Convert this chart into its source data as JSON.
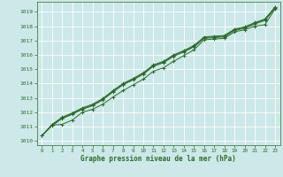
{
  "xlabel": "Graphe pression niveau de la mer (hPa)",
  "bg_color": "#cce8e8",
  "grid_color": "#ffffff",
  "line_color": "#2d6a2d",
  "xlim": [
    -0.5,
    23.5
  ],
  "ylim": [
    1009.7,
    1019.7
  ],
  "yticks": [
    1010,
    1011,
    1012,
    1013,
    1014,
    1015,
    1016,
    1017,
    1018,
    1019
  ],
  "xticks": [
    0,
    1,
    2,
    3,
    4,
    5,
    6,
    7,
    8,
    9,
    10,
    11,
    12,
    13,
    14,
    15,
    16,
    17,
    18,
    19,
    20,
    21,
    22,
    23
  ],
  "line1": [
    1010.35,
    1011.05,
    1011.55,
    1011.85,
    1012.2,
    1012.45,
    1012.85,
    1013.4,
    1013.9,
    1014.25,
    1014.65,
    1015.2,
    1015.45,
    1015.9,
    1016.2,
    1016.55,
    1017.15,
    1017.2,
    1017.25,
    1017.7,
    1017.85,
    1018.15,
    1018.4,
    1019.25
  ],
  "line2": [
    1010.35,
    1011.1,
    1011.6,
    1011.9,
    1012.25,
    1012.5,
    1012.9,
    1013.45,
    1013.95,
    1014.3,
    1014.7,
    1015.25,
    1015.5,
    1015.95,
    1016.25,
    1016.6,
    1017.2,
    1017.25,
    1017.3,
    1017.75,
    1017.9,
    1018.2,
    1018.45,
    1019.3
  ],
  "line3": [
    1010.35,
    1011.15,
    1011.65,
    1011.95,
    1012.3,
    1012.55,
    1012.95,
    1013.5,
    1014.0,
    1014.35,
    1014.75,
    1015.3,
    1015.55,
    1016.0,
    1016.3,
    1016.65,
    1017.25,
    1017.3,
    1017.35,
    1017.8,
    1017.95,
    1018.25,
    1018.5,
    1019.35
  ],
  "line4": [
    1010.35,
    1011.1,
    1011.15,
    1011.45,
    1012.0,
    1012.2,
    1012.55,
    1013.05,
    1013.5,
    1013.9,
    1014.3,
    1014.85,
    1015.1,
    1015.55,
    1015.95,
    1016.35,
    1017.05,
    1017.1,
    1017.15,
    1017.6,
    1017.75,
    1018.0,
    1018.1,
    1019.2
  ]
}
